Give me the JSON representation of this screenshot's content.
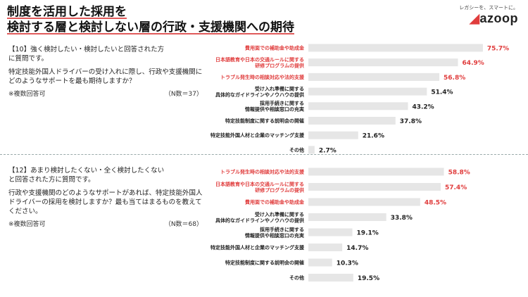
{
  "title": {
    "line1": "制度を活用した採用を",
    "line2": "検討する層と検討しない層の行政・支援機関への期待"
  },
  "logo": {
    "tagline": "レガシーを、スマートに。",
    "name": "azoop"
  },
  "colors": {
    "bar": "#e6e6e6",
    "highlight": "#e03c3c",
    "text": "#222222"
  },
  "questions": [
    {
      "number": "【10】",
      "lead": "強く検討したい・検討したいと回答された方",
      "lead2": "に質問です。",
      "body": "特定技能外国人ドライバーの受け入れに際し、行政や支援機関にどのようなサポートを最も期待しますか？",
      "note": "※複数回答可",
      "n": "（N数＝37）"
    },
    {
      "number": "【12】",
      "lead": "あまり検討したくない・全く検討したくない",
      "lead2": "と回答された方に質問です。",
      "body": "行政や支援機関のどのようなサポートがあれば、特定技能外国人ドライバーの採用を検討しますか？最も当てはまるものを教えてください。",
      "note": "※複数回答可",
      "n": "（N数＝68）"
    }
  ],
  "chart_data": [
    {
      "type": "bar",
      "orientation": "horizontal",
      "xlim": [
        0,
        80
      ],
      "unit": "%",
      "categories": [
        [
          "費用面での補助金や助成金"
        ],
        [
          "日本語教育や日本の交通ルールに関する",
          "研修プログラムの提供"
        ],
        [
          "トラブル発生時の相談対応や法的支援"
        ],
        [
          "受け入れ準備に関する",
          "具体的なガイドラインやノウハウの提供"
        ],
        [
          "採用手続きに関する",
          "情報提供や相談窓口の充実"
        ],
        [
          "特定技能制度に関する説明会の開催"
        ],
        [
          "特定技能外国人材と企業のマッチング支援"
        ],
        [
          "その他"
        ]
      ],
      "values": [
        75.7,
        64.9,
        56.8,
        51.4,
        43.2,
        37.8,
        21.6,
        2.7
      ],
      "labels": [
        "75.7%",
        "64.9%",
        "56.8%",
        "51.4%",
        "43.2%",
        "37.8%",
        "21.6%",
        "2.7%"
      ],
      "highlight": [
        true,
        true,
        true,
        false,
        false,
        false,
        false,
        false
      ]
    },
    {
      "type": "bar",
      "orientation": "horizontal",
      "xlim": [
        0,
        80
      ],
      "unit": "%",
      "categories": [
        [
          "トラブル発生時の相談対応や法的支援"
        ],
        [
          "日本語教育や日本の交通ルールに関する",
          "研修プログラムの提供"
        ],
        [
          "費用面での補助金や助成金"
        ],
        [
          "受け入れ準備に関する",
          "具体的なガイドラインやノウハウの提供"
        ],
        [
          "採用手続きに関する",
          "情報提供や相談窓口の充実"
        ],
        [
          "特定技能外国人材と企業のマッチング支援"
        ],
        [
          "特定技能制度に関する説明会の開催"
        ],
        [
          "その他"
        ]
      ],
      "values": [
        58.8,
        57.4,
        48.5,
        33.8,
        19.1,
        14.7,
        10.3,
        19.5
      ],
      "labels": [
        "58.8%",
        "57.4%",
        "48.5%",
        "33.8%",
        "19.1%",
        "14.7%",
        "10.3%",
        "19.5%"
      ],
      "highlight": [
        true,
        true,
        true,
        false,
        false,
        false,
        false,
        false
      ]
    }
  ]
}
